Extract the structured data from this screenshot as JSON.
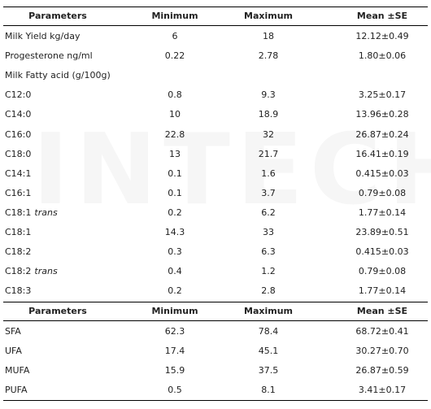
{
  "watermark": "INTECH",
  "tables": [
    {
      "header": [
        "Parameters",
        "Minimum",
        "Maximum",
        "Mean ±SE"
      ],
      "rows": [
        [
          "Milk Yield  kg/day",
          "6",
          "18",
          "12.12±0.49"
        ],
        [
          "Progesterone ng/ml",
          "0.22",
          "2.78",
          "1.80±0.06"
        ],
        [
          "Milk Fatty acid (g/100g)"
        ],
        [
          "C12:0",
          "0.8",
          "9.3",
          "3.25±0.17"
        ],
        [
          "C14:0",
          "10",
          "18.9",
          "13.96±0.28"
        ],
        [
          "C16:0",
          "22.8",
          "32",
          "26.87±0.24"
        ],
        [
          "C18:0",
          "13",
          "21.7",
          "16.41±0.19"
        ],
        [
          "C14:1",
          "0.1",
          "1.6",
          "0.415±0.03"
        ],
        [
          "C16:1",
          "0.1",
          "3.7",
          "0.79±0.08"
        ],
        [
          {
            "text": "C18:1",
            "italic": "trans"
          },
          "0.2",
          "6.2",
          "1.77±0.14"
        ],
        [
          "C18:1",
          "14.3",
          "33",
          "23.89±0.51"
        ],
        [
          "C18:2",
          "0.3",
          "6.3",
          "0.415±0.03"
        ],
        [
          {
            "text": "C18:2",
            "italic": "trans"
          },
          "0.4",
          "1.2",
          "0.79±0.08"
        ],
        [
          "C18:3",
          "0.2",
          "2.8",
          "1.77±0.14"
        ]
      ]
    },
    {
      "header": [
        "Parameters",
        "Minimum",
        "Maximum",
        "Mean ±SE"
      ],
      "rows": [
        [
          "SFA",
          "62.3",
          "78.4",
          "68.72±0.41"
        ],
        [
          "UFA",
          "17.4",
          "45.1",
          "30.27±0.70"
        ],
        [
          "MUFA",
          "15.9",
          "37.5",
          "26.87±0.59"
        ],
        [
          "PUFA",
          "0.5",
          "8.1",
          "3.41±0.17"
        ]
      ]
    }
  ]
}
